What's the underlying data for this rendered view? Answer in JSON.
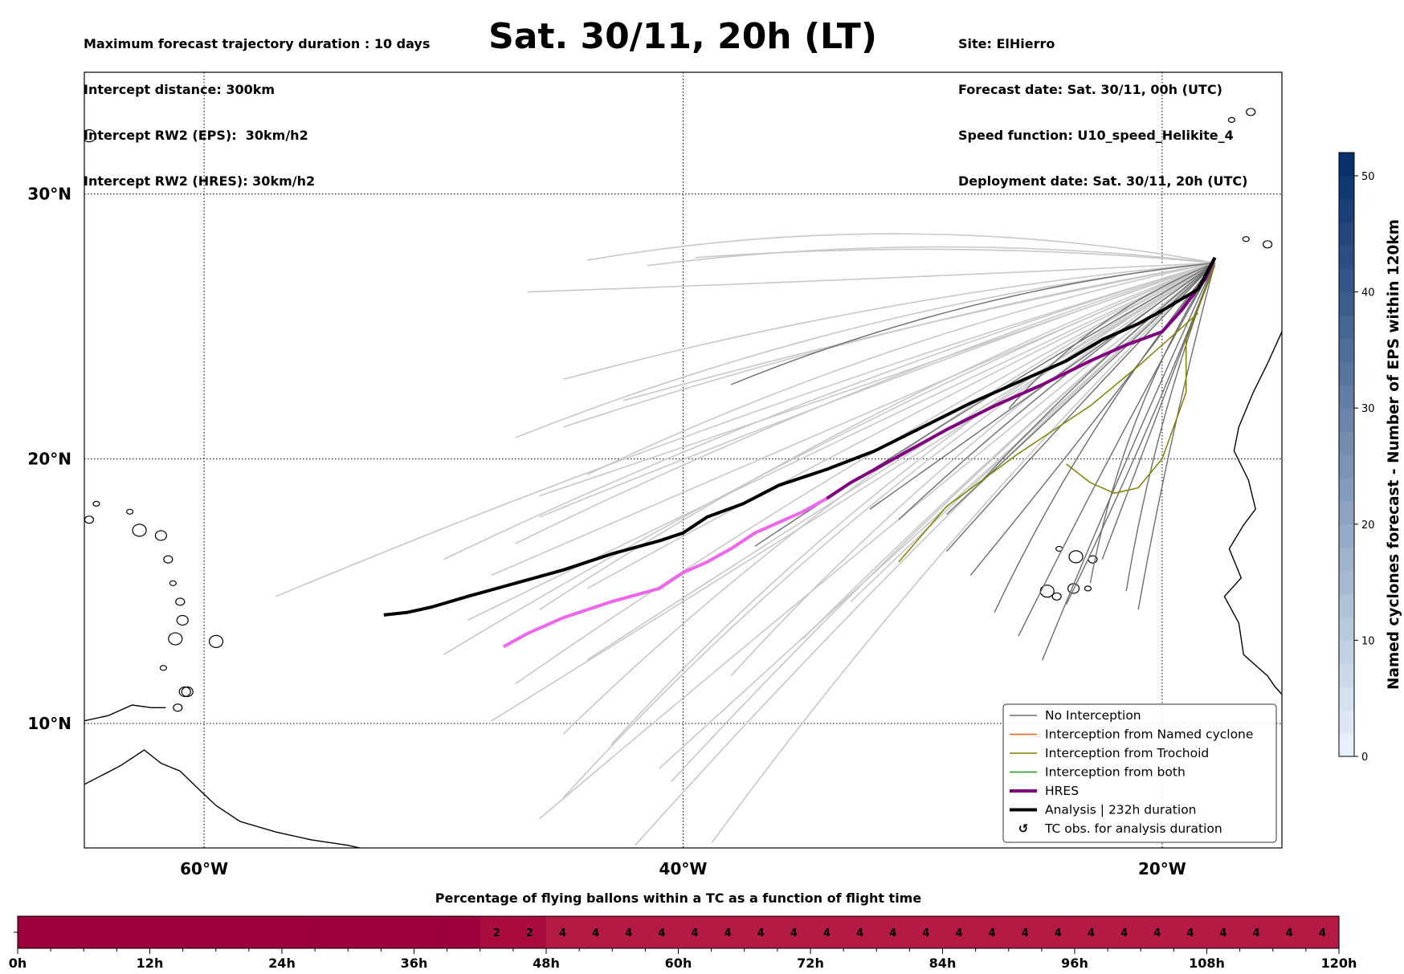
{
  "header": {
    "left": [
      "Maximum forecast trajectory duration : 10 days",
      "Intercept distance: 300km",
      "Intercept RW2 (EPS):  30km/h2",
      "Intercept RW2 (HRES): 30km/h2"
    ],
    "title": "Sat. 30/11, 20h (LT)",
    "right": [
      "Site: ElHierro",
      "Forecast date: Sat. 30/11, 00h (UTC)",
      "Speed function: U10_speed_Helikite_4",
      "Deployment date: Sat. 30/11, 20h (UTC)"
    ]
  },
  "chart_data": [
    {
      "type": "map-trajectories",
      "lon_ticks": [
        "60°W",
        "40°W",
        "20°W"
      ],
      "lat_ticks": [
        "30°N",
        "20°N",
        "10°N"
      ],
      "extent": {
        "lon": [
          -65,
          -15
        ],
        "lat": [
          5.3,
          34.6
        ]
      },
      "grid": true,
      "legend_position": "lower right",
      "legend": [
        {
          "label": "No Interception",
          "color": "#6e6e6e",
          "style": "thin"
        },
        {
          "label": "Interception from Named cyclone",
          "color": "#ff5a1e",
          "style": "thin"
        },
        {
          "label": "Interception from Trochoid",
          "color": "#808000",
          "style": "thin"
        },
        {
          "label": "Interception from both",
          "color": "#1a9a1a",
          "style": "thin"
        },
        {
          "label": "HRES",
          "color": "#800080",
          "style": "thick"
        },
        {
          "label": "Analysis | 232h duration",
          "color": "#000000",
          "style": "thick"
        },
        {
          "label": "TC obs. for analysis duration",
          "color": "#000000",
          "style": "marker"
        }
      ],
      "colors": {
        "ens_light": "#c8c8c8",
        "ens_dark": "#6e6e6e",
        "hres_early": "#800080",
        "hres_late": "#ee66ee",
        "analysis": "#000000",
        "trochoid": "#808000"
      },
      "analysis_track": [
        [
          -17.8,
          27.6
        ],
        [
          -18.5,
          26.4
        ],
        [
          -20,
          25.6
        ],
        [
          -21,
          25.1
        ],
        [
          -22.5,
          24.5
        ],
        [
          -24,
          23.7
        ],
        [
          -26,
          22.9
        ],
        [
          -28,
          22.1
        ],
        [
          -30,
          21.2
        ],
        [
          -32,
          20.3
        ],
        [
          -34,
          19.6
        ],
        [
          -36,
          19
        ],
        [
          -37.5,
          18.3
        ],
        [
          -39,
          17.8
        ],
        [
          -40,
          17.2
        ],
        [
          -41,
          16.9
        ],
        [
          -43,
          16.4
        ],
        [
          -45,
          15.8
        ],
        [
          -47,
          15.3
        ],
        [
          -49,
          14.8
        ],
        [
          -50.5,
          14.4
        ],
        [
          -51.5,
          14.2
        ],
        [
          -52.5,
          14.1
        ]
      ],
      "hres_track": [
        [
          -17.8,
          27.6
        ],
        [
          -18.2,
          26.8
        ],
        [
          -19.2,
          25.6
        ],
        [
          -20,
          24.8
        ],
        [
          -21.5,
          24.3
        ],
        [
          -23,
          23.7
        ],
        [
          -25,
          22.8
        ],
        [
          -27,
          22
        ],
        [
          -29,
          21.1
        ],
        [
          -31,
          20.1
        ],
        [
          -33,
          19.1
        ],
        [
          -34,
          18.5
        ],
        [
          -35,
          18
        ],
        [
          -36,
          17.6
        ],
        [
          -37,
          17.2
        ],
        [
          -38,
          16.6
        ],
        [
          -39,
          16.1
        ],
        [
          -40,
          15.7
        ],
        [
          -41,
          15.1
        ],
        [
          -43,
          14.6
        ],
        [
          -45,
          14
        ],
        [
          -46.5,
          13.4
        ],
        [
          -47.5,
          12.9
        ]
      ],
      "hres_color_split_lon": -34,
      "ensemble_light_endpoints": [
        [
          -57,
          14.8
        ],
        [
          -50,
          16.2
        ],
        [
          -48,
          15.6
        ],
        [
          -46,
          17.8
        ],
        [
          -45,
          21.2
        ],
        [
          -45,
          23
        ],
        [
          -46.5,
          26.3
        ],
        [
          -44,
          27.5
        ],
        [
          -41.5,
          27.3
        ],
        [
          -39.5,
          27.6
        ],
        [
          -42.5,
          22.2
        ],
        [
          -47,
          20.8
        ],
        [
          -44,
          19.4
        ],
        [
          -46,
          18.6
        ],
        [
          -47,
          16.8
        ],
        [
          -44,
          15.1
        ],
        [
          -46,
          14.3
        ],
        [
          -49,
          13.9
        ],
        [
          -50,
          12.6
        ],
        [
          -47,
          11.5
        ],
        [
          -44,
          12.4
        ],
        [
          -48,
          10.1
        ],
        [
          -45,
          9.6
        ],
        [
          -43,
          9.2
        ],
        [
          -41,
          8.3
        ],
        [
          -40.5,
          7.8
        ],
        [
          -45,
          7.2
        ],
        [
          -46,
          6.4
        ],
        [
          -42,
          5.4
        ],
        [
          -38.8,
          5.5
        ],
        [
          -38,
          11.8
        ],
        [
          -35,
          13.2
        ],
        [
          -33,
          14.6
        ]
      ],
      "ensemble_dark_endpoints": [
        [
          -38,
          22.8
        ],
        [
          -37,
          16.7
        ],
        [
          -32.2,
          18.1
        ],
        [
          -31,
          17.7
        ],
        [
          -29,
          16.5
        ],
        [
          -28,
          15.6
        ],
        [
          -27,
          14.2
        ],
        [
          -26,
          13.3
        ],
        [
          -25,
          12.4
        ],
        [
          -24,
          14.5
        ],
        [
          -23,
          15.3
        ],
        [
          -22.5,
          16.2
        ],
        [
          -26.4,
          21.9
        ],
        [
          -27.5,
          19.2
        ],
        [
          -29,
          17.9
        ],
        [
          -21.5,
          15
        ],
        [
          -21,
          14.3
        ]
      ],
      "trochoid_tracks": [
        [
          [
            -17.8,
            27.3
          ],
          [
            -19,
            24.5
          ],
          [
            -19,
            22.5
          ],
          [
            -20,
            20
          ],
          [
            -21,
            18.9
          ],
          [
            -22,
            18.7
          ],
          [
            -23,
            19.1
          ],
          [
            -24,
            19.8
          ]
        ],
        [
          [
            -18.5,
            25.5
          ],
          [
            -21,
            23.5
          ],
          [
            -23,
            22
          ],
          [
            -26,
            20.2
          ],
          [
            -29,
            18.2
          ],
          [
            -31,
            16.1
          ]
        ]
      ],
      "coast_label": "coastlines"
    },
    {
      "type": "bar-strip",
      "title": "Percentage of flying ballons within a TC as a function of flight time",
      "x_unit": "hours",
      "x_range": [
        0,
        120
      ],
      "x_tick_labels": [
        "0h",
        "12h",
        "24h",
        "36h",
        "48h",
        "60h",
        "72h",
        "84h",
        "96h",
        "108h",
        "120h"
      ],
      "cell_width_h": 3,
      "values": [
        0,
        0,
        0,
        0,
        0,
        0,
        0,
        0,
        0,
        0,
        0,
        0,
        0,
        0,
        2,
        2,
        4,
        4,
        4,
        4,
        4,
        4,
        4,
        4,
        4,
        4,
        4,
        4,
        4,
        4,
        4,
        4,
        4,
        4,
        4,
        4,
        4,
        4,
        4,
        4
      ],
      "color_zero": "#9b003a",
      "color_low": "#aa0c40",
      "color_high": "#b51a45"
    }
  ],
  "colorbar": {
    "label": "Named cyclones forecast - Number of EPS within 120km",
    "min": 0,
    "max": 52,
    "ticks": [
      "0",
      "10",
      "20",
      "30",
      "40",
      "50"
    ],
    "tick_values": [
      0,
      10,
      20,
      30,
      40,
      50
    ],
    "color_low": "#e6f0fa",
    "color_high": "#08306b"
  }
}
